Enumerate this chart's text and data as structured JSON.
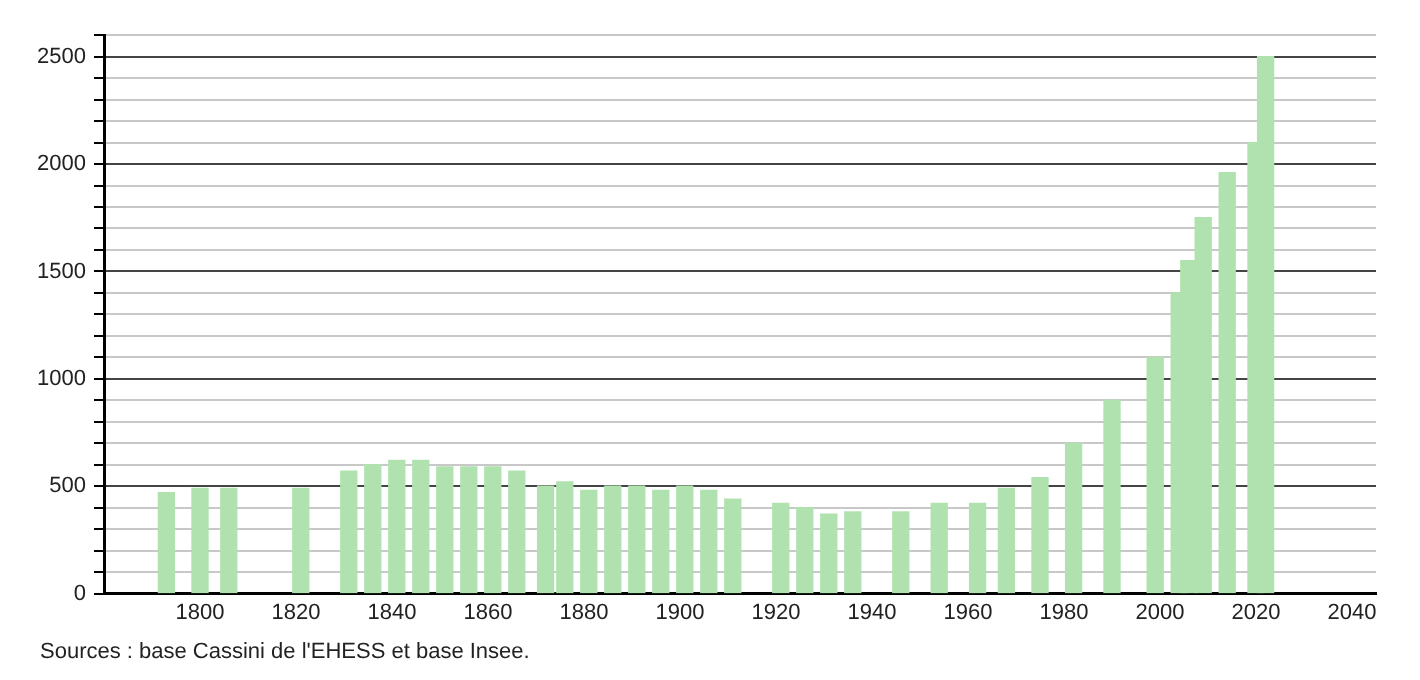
{
  "chart_data": {
    "type": "bar",
    "x": [
      1793,
      1800,
      1806,
      1821,
      1831,
      1836,
      1841,
      1846,
      1851,
      1856,
      1861,
      1866,
      1872,
      1876,
      1881,
      1886,
      1891,
      1896,
      1901,
      1906,
      1911,
      1921,
      1926,
      1931,
      1936,
      1946,
      1954,
      1962,
      1968,
      1975,
      1982,
      1990,
      1999,
      2004,
      2006,
      2009,
      2014,
      2020,
      2022
    ],
    "values": [
      470,
      490,
      490,
      490,
      570,
      600,
      620,
      620,
      590,
      590,
      590,
      570,
      500,
      520,
      480,
      500,
      500,
      480,
      500,
      480,
      440,
      420,
      400,
      370,
      380,
      380,
      420,
      420,
      490,
      540,
      700,
      900,
      1100,
      1400,
      1550,
      1750,
      1960,
      2100,
      2500
    ],
    "color": "#b0e2b0",
    "xlim": [
      1780,
      2045
    ],
    "xticks": [
      1800,
      1820,
      1840,
      1860,
      1880,
      1900,
      1920,
      1940,
      1960,
      1980,
      2000,
      2020,
      2040
    ],
    "ylim": [
      0,
      2600
    ],
    "yticks": [
      0,
      {
        "value": 100,
        "label": null
      },
      {
        "value": 200,
        "label": null
      },
      {
        "value": 300,
        "label": null
      },
      {
        "value": 400,
        "label": null
      },
      500,
      {
        "value": 600,
        "label": null
      },
      {
        "value": 700,
        "label": null
      },
      {
        "value": 800,
        "label": null
      },
      {
        "value": 900,
        "label": null
      },
      1000,
      {
        "value": 1100,
        "label": null
      },
      {
        "value": 1200,
        "label": null
      },
      {
        "value": 1300,
        "label": null
      },
      {
        "value": 1400,
        "label": null
      },
      1500,
      {
        "value": 1600,
        "label": null
      },
      {
        "value": 1700,
        "label": null
      },
      {
        "value": 1800,
        "label": null
      },
      {
        "value": 1900,
        "label": null
      },
      2000,
      {
        "value": 2100,
        "label": null
      },
      {
        "value": 2200,
        "label": null
      },
      {
        "value": 2300,
        "label": null
      },
      {
        "value": 2400,
        "label": null
      },
      2500,
      {
        "value": 2600,
        "label": null
      }
    ],
    "grid": "y",
    "legend": false,
    "annotations": [
      "Sources : base Cassini de l'EHESS et base Insee."
    ]
  }
}
